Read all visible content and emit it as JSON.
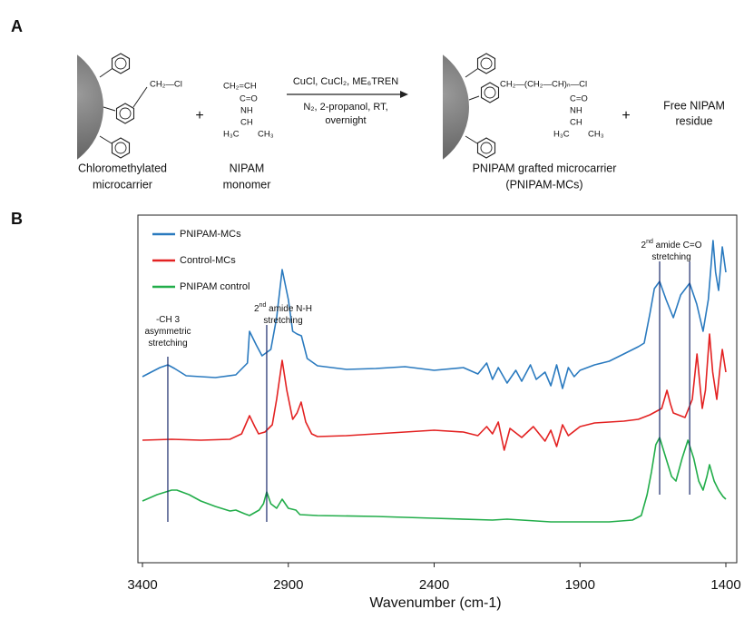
{
  "scheme": {
    "label": "A",
    "reactant_group": "CH₂—Cl",
    "plus": [
      "+",
      "+"
    ],
    "monomer": [
      "CH₂=CH",
      "C=O",
      "NH",
      "CH",
      "H₃C",
      "CH₃"
    ],
    "conditions_above": "CuCl, CuCl₂, ME₆TREN",
    "conditions_below": [
      "N₂, 2-propanol, RT,",
      "overnight"
    ],
    "product_chain": "CH₂—(CH₂—CH)ₙ—Cl",
    "product_pendant": [
      "C=O",
      "NH",
      "CH",
      "H₃C",
      "CH₃"
    ],
    "residue": [
      "Free NIPAM",
      "residue"
    ],
    "captions": [
      [
        "Chloromethylated",
        "microcarrier"
      ],
      [
        "NIPAM",
        "monomer"
      ],
      [
        "PNIPAM grafted microcarrier",
        "(PNIPAM-MCs)"
      ]
    ]
  },
  "chart_data": {
    "type": "line",
    "panel_label": "B",
    "xlabel": "Wavenumber (cm-1)",
    "xlim": [
      3400,
      1400
    ],
    "xticks": [
      3400,
      2900,
      2400,
      1900,
      1400
    ],
    "ylim": [
      0,
      383
    ],
    "series": [
      {
        "name": "PNIPAM-MCs",
        "color": "#2a7abf",
        "x": [
          3400,
          3370,
          3340,
          3313,
          3290,
          3250,
          3150,
          3080,
          3040,
          3033,
          3010,
          2990,
          2960,
          2940,
          2921,
          2900,
          2885,
          2870,
          2855,
          2835,
          2800,
          2700,
          2600,
          2500,
          2400,
          2300,
          2250,
          2220,
          2200,
          2180,
          2150,
          2120,
          2100,
          2070,
          2050,
          2020,
          2000,
          1980,
          1960,
          1940,
          1920,
          1900,
          1850,
          1800,
          1750,
          1700,
          1680,
          1660,
          1645,
          1627,
          1605,
          1580,
          1555,
          1524,
          1500,
          1478,
          1460,
          1444,
          1435,
          1425,
          1412,
          1400
        ],
        "values": [
          205,
          210,
          215,
          218,
          214,
          206,
          204,
          207,
          220,
          255,
          240,
          228,
          235,
          270,
          323,
          290,
          255,
          252,
          250,
          225,
          217,
          213,
          214,
          216,
          212,
          215,
          208,
          220,
          202,
          215,
          198,
          212,
          200,
          218,
          202,
          210,
          195,
          218,
          192,
          215,
          205,
          212,
          218,
          222,
          230,
          238,
          242,
          275,
          302,
          310,
          290,
          270,
          295,
          308,
          285,
          255,
          290,
          355,
          320,
          300,
          348,
          320
        ]
      },
      {
        "name": "Control-MCs",
        "color": "#e32222",
        "x": [
          3400,
          3300,
          3200,
          3100,
          3060,
          3033,
          3015,
          3002,
          2980,
          2955,
          2940,
          2921,
          2905,
          2885,
          2870,
          2856,
          2840,
          2820,
          2800,
          2700,
          2600,
          2500,
          2400,
          2300,
          2250,
          2220,
          2200,
          2180,
          2160,
          2140,
          2100,
          2060,
          2020,
          2000,
          1980,
          1960,
          1940,
          1900,
          1850,
          1800,
          1750,
          1700,
          1660,
          1620,
          1602,
          1590,
          1580,
          1540,
          1515,
          1499,
          1487,
          1481,
          1470,
          1456,
          1445,
          1431,
          1420,
          1412,
          1400
        ],
        "values": [
          135,
          136,
          135,
          136,
          142,
          162,
          150,
          142,
          144,
          152,
          180,
          223,
          190,
          158,
          165,
          177,
          155,
          142,
          139,
          140,
          142,
          144,
          146,
          144,
          140,
          150,
          142,
          155,
          124,
          148,
          138,
          150,
          134,
          146,
          128,
          152,
          140,
          150,
          154,
          155,
          156,
          158,
          163,
          170,
          190,
          175,
          165,
          160,
          180,
          230,
          190,
          170,
          190,
          252,
          210,
          180,
          215,
          235,
          210
        ]
      },
      {
        "name": "PNIPAM control",
        "color": "#22ad4a",
        "x": [
          3400,
          3350,
          3300,
          3282,
          3240,
          3200,
          3150,
          3100,
          3080,
          3050,
          3033,
          3000,
          2985,
          2974,
          2960,
          2940,
          2921,
          2900,
          2874,
          2860,
          2800,
          2600,
          2400,
          2200,
          2150,
          2000,
          1800,
          1720,
          1690,
          1670,
          1655,
          1640,
          1627,
          1610,
          1586,
          1571,
          1550,
          1530,
          1510,
          1493,
          1478,
          1465,
          1456,
          1440,
          1425,
          1410,
          1400
        ],
        "values": [
          68,
          75,
          80,
          80,
          75,
          68,
          62,
          57,
          58,
          54,
          52,
          58,
          65,
          78,
          65,
          60,
          70,
          60,
          58,
          53,
          52,
          51,
          49,
          47,
          48,
          45,
          45,
          47,
          52,
          75,
          100,
          130,
          138,
          120,
          95,
          90,
          115,
          135,
          115,
          90,
          80,
          95,
          108,
          90,
          80,
          73,
          70
        ]
      }
    ],
    "annotations": [
      {
        "wavenumbers": [
          3313
        ],
        "lines": [
          {
            "parts": [
              "-CH 3"
            ]
          },
          {
            "parts": [
              "asymmetric"
            ]
          },
          {
            "parts": [
              "stretching"
            ]
          }
        ]
      },
      {
        "wavenumbers": [
          2974
        ],
        "lines": [
          {
            "parts": [
              "2",
              "nd",
              " amide  N-H"
            ],
            "superscript": 1
          },
          {
            "parts": [
              "stretching"
            ]
          }
        ]
      },
      {
        "wavenumbers": [
          1627,
          1524
        ],
        "lines": [
          {
            "parts": [
              "2",
              "nd",
              " amide C=O"
            ],
            "superscript": 1
          },
          {
            "parts": [
              "stretching"
            ]
          }
        ]
      }
    ]
  }
}
